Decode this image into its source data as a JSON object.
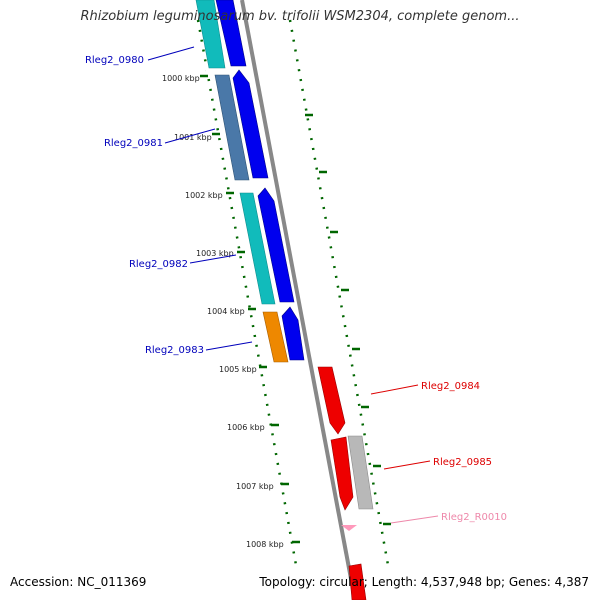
{
  "title": "Rhizobium leguminosarum bv. trifolii WSM2304, complete genom...",
  "footer": {
    "accession": "Accession: NC_011369",
    "summary": "Topology: circular; Length: 4,537,948 bp; Genes: 4,387"
  },
  "ticks": [
    "1000 kbp",
    "1001 kbp",
    "1002 kbp",
    "1003 kbp",
    "1004 kbp",
    "1005 kbp",
    "1006 kbp",
    "1007 kbp",
    "1008 kbp"
  ],
  "genes": {
    "rleg2_0980": "Rleg2_0980",
    "rleg2_0981": "Rleg2_0981",
    "rleg2_0982": "Rleg2_0982",
    "rleg2_0983": "Rleg2_0983",
    "rleg2_0984": "Rleg2_0984",
    "rleg2_0985": "Rleg2_0985",
    "rleg2_r0010": "Rleg2_R0010"
  },
  "colors": {
    "left_label": "#0000bb",
    "right_label": "#dd0000",
    "rna_label": "#ee88aa",
    "cds_forward": "#0000ee",
    "cds_reverse": "#ee0000",
    "cyan": "#11bbbb",
    "steel": "#4a78a8",
    "orange": "#ee8800",
    "grey": "#b8b8b8",
    "pink": "#ff99bb",
    "backbone": "#888888",
    "ticks": "#006600"
  }
}
